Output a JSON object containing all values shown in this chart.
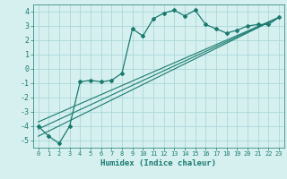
{
  "xlabel": "Humidex (Indice chaleur)",
  "bg_color": "#d6f0f0",
  "grid_color": "#aad8d8",
  "line_color": "#1a7a6e",
  "xlim": [
    -0.5,
    23.5
  ],
  "ylim": [
    -5.5,
    4.5
  ],
  "xticks": [
    0,
    1,
    2,
    3,
    4,
    5,
    6,
    7,
    8,
    9,
    10,
    11,
    12,
    13,
    14,
    15,
    16,
    17,
    18,
    19,
    20,
    21,
    22,
    23
  ],
  "yticks": [
    -5,
    -4,
    -3,
    -2,
    -1,
    0,
    1,
    2,
    3,
    4
  ],
  "main_line_x": [
    0,
    1,
    2,
    3,
    4,
    5,
    6,
    7,
    8,
    9,
    10,
    11,
    12,
    13,
    14,
    15,
    16,
    17,
    18,
    19,
    20,
    21,
    22,
    23
  ],
  "main_line_y": [
    -4.0,
    -4.7,
    -5.2,
    -4.0,
    -0.9,
    -0.8,
    -0.9,
    -0.8,
    -0.3,
    2.8,
    2.3,
    3.5,
    3.9,
    4.1,
    3.7,
    4.1,
    3.1,
    2.8,
    2.5,
    2.7,
    3.0,
    3.1,
    3.1,
    3.6
  ],
  "line2_x": [
    0,
    23
  ],
  "line2_y": [
    -4.7,
    3.6
  ],
  "line3_x": [
    0,
    23
  ],
  "line3_y": [
    -4.2,
    3.6
  ],
  "line4_x": [
    0,
    23
  ],
  "line4_y": [
    -3.7,
    3.6
  ]
}
